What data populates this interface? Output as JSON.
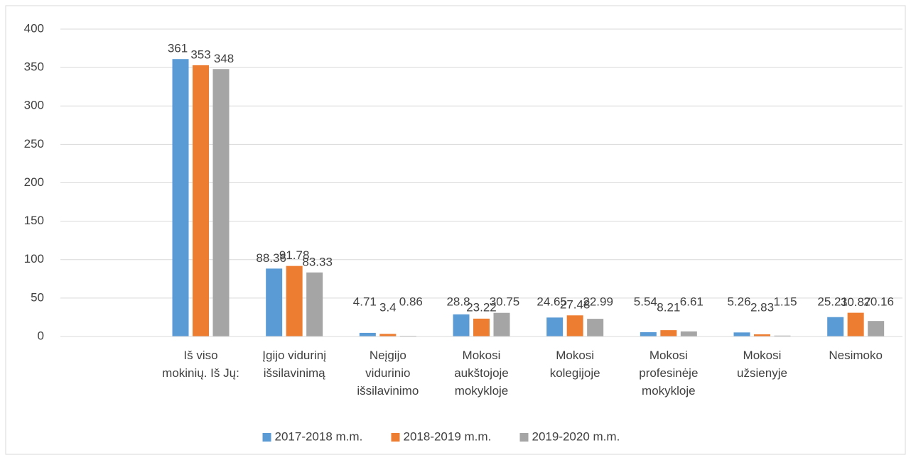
{
  "chart_data": {
    "type": "bar",
    "categories": [
      null,
      "Iš viso mokinių. Iš Jų:",
      "Įgijo vidurinį išsilavinimą",
      "Neįgijo vidurinio išsilavinimo",
      "Mokosi aukštojoje mokykloje",
      "Mokosi kolegijoje",
      "Mokosi profesinėje mokykloje",
      "Mokosi užsienyje",
      "Nesimoko"
    ],
    "series": [
      {
        "name": "2017-2018 m.m.",
        "color": "#5b9bd5",
        "values": [
          null,
          361,
          88.36,
          4.71,
          28.8,
          24.65,
          5.54,
          5.26,
          25.21
        ]
      },
      {
        "name": "2018-2019 m.m.",
        "color": "#ed7d31",
        "values": [
          null,
          353,
          91.78,
          3.4,
          23.22,
          27.48,
          8.21,
          2.83,
          30.87
        ]
      },
      {
        "name": "2019-2020 m.m.",
        "color": "#a5a5a5",
        "values": [
          null,
          348,
          83.33,
          0.86,
          30.75,
          22.99,
          6.61,
          1.15,
          20.16
        ]
      }
    ],
    "ylim": [
      0,
      400
    ],
    "yticks": [
      0,
      50,
      100,
      150,
      200,
      250,
      300,
      350,
      400
    ],
    "grid": true,
    "legend": "bottom"
  }
}
